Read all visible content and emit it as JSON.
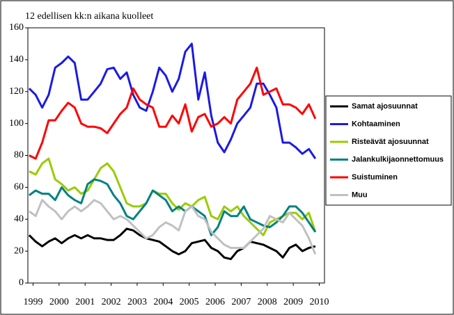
{
  "chart_data": {
    "type": "line",
    "title": "12 edellisen kk:n aikana kuolleet",
    "x": [
      1998.85,
      1999.1,
      1999.35,
      1999.6,
      1999.85,
      2000.1,
      2000.35,
      2000.6,
      2000.85,
      2001.1,
      2001.35,
      2001.6,
      2001.85,
      2002.1,
      2002.35,
      2002.6,
      2002.85,
      2003.1,
      2003.35,
      2003.6,
      2003.85,
      2004.1,
      2004.35,
      2004.6,
      2004.85,
      2005.1,
      2005.35,
      2005.6,
      2005.85,
      2006.1,
      2006.35,
      2006.6,
      2006.85,
      2007.1,
      2007.35,
      2007.6,
      2007.85,
      2008.1,
      2008.35,
      2008.6,
      2008.85,
      2009.1,
      2009.35,
      2009.6,
      2009.85
    ],
    "xlim": [
      1998.8,
      2010.2
    ],
    "xticks": [
      1999,
      2000,
      2001,
      2002,
      2003,
      2004,
      2005,
      2006,
      2007,
      2008,
      2009,
      2010
    ],
    "ylim": [
      0,
      160
    ],
    "yticks": [
      0,
      20,
      40,
      60,
      80,
      100,
      120,
      140,
      160
    ],
    "grid": false,
    "legend": "right",
    "series": [
      {
        "name": "Samat ajosuunnat",
        "color": "#000000",
        "values": [
          30,
          26,
          23,
          26,
          28,
          25,
          28,
          30,
          28,
          30,
          28,
          28,
          27,
          27,
          30,
          34,
          33,
          30,
          28,
          27,
          26,
          23,
          20,
          18,
          20,
          25,
          26,
          27,
          22,
          20,
          16,
          15,
          20,
          22,
          26,
          25,
          24,
          22,
          20,
          16,
          22,
          24,
          20,
          22,
          23
        ]
      },
      {
        "name": "Kohtaaminen",
        "color": "#1a1ae6",
        "values": [
          122,
          118,
          110,
          118,
          135,
          138,
          142,
          138,
          115,
          115,
          120,
          125,
          134,
          135,
          128,
          132,
          118,
          110,
          108,
          120,
          135,
          130,
          120,
          128,
          145,
          150,
          115,
          132,
          105,
          88,
          82,
          90,
          100,
          105,
          110,
          125,
          125,
          118,
          110,
          88,
          88,
          85,
          81,
          84,
          78
        ]
      },
      {
        "name": "Risteävät ajosuunnat",
        "color": "#99cc00",
        "values": [
          70,
          68,
          75,
          78,
          65,
          62,
          58,
          60,
          56,
          58,
          65,
          72,
          75,
          70,
          60,
          50,
          48,
          48,
          50,
          58,
          56,
          56,
          50,
          46,
          50,
          48,
          52,
          54,
          42,
          40,
          48,
          45,
          48,
          42,
          38,
          34,
          30,
          38,
          40,
          42,
          44,
          44,
          40,
          44,
          32
        ]
      },
      {
        "name": "Jalankulkijaonnettomuus",
        "color": "#008080",
        "values": [
          55,
          58,
          56,
          56,
          52,
          60,
          55,
          52,
          50,
          62,
          65,
          64,
          62,
          55,
          50,
          42,
          40,
          45,
          50,
          58,
          55,
          52,
          45,
          48,
          45,
          48,
          45,
          42,
          30,
          35,
          45,
          42,
          42,
          48,
          40,
          38,
          36,
          35,
          38,
          42,
          48,
          48,
          44,
          38,
          32
        ]
      },
      {
        "name": "Suistuminen",
        "color": "#ff0000",
        "values": [
          80,
          78,
          88,
          102,
          102,
          108,
          113,
          110,
          100,
          98,
          98,
          97,
          94,
          100,
          106,
          110,
          122,
          115,
          112,
          110,
          98,
          98,
          105,
          100,
          112,
          95,
          104,
          106,
          98,
          100,
          104,
          100,
          115,
          120,
          125,
          135,
          118,
          120,
          122,
          112,
          112,
          110,
          106,
          112,
          103
        ]
      },
      {
        "name": "Muu",
        "color": "#c0c0c0",
        "values": [
          45,
          42,
          52,
          48,
          45,
          40,
          45,
          48,
          45,
          48,
          52,
          50,
          45,
          40,
          42,
          40,
          36,
          32,
          28,
          30,
          35,
          38,
          36,
          33,
          45,
          48,
          42,
          40,
          32,
          28,
          24,
          22,
          22,
          22,
          26,
          30,
          34,
          42,
          40,
          38,
          44,
          40,
          36,
          28,
          18
        ]
      }
    ]
  }
}
